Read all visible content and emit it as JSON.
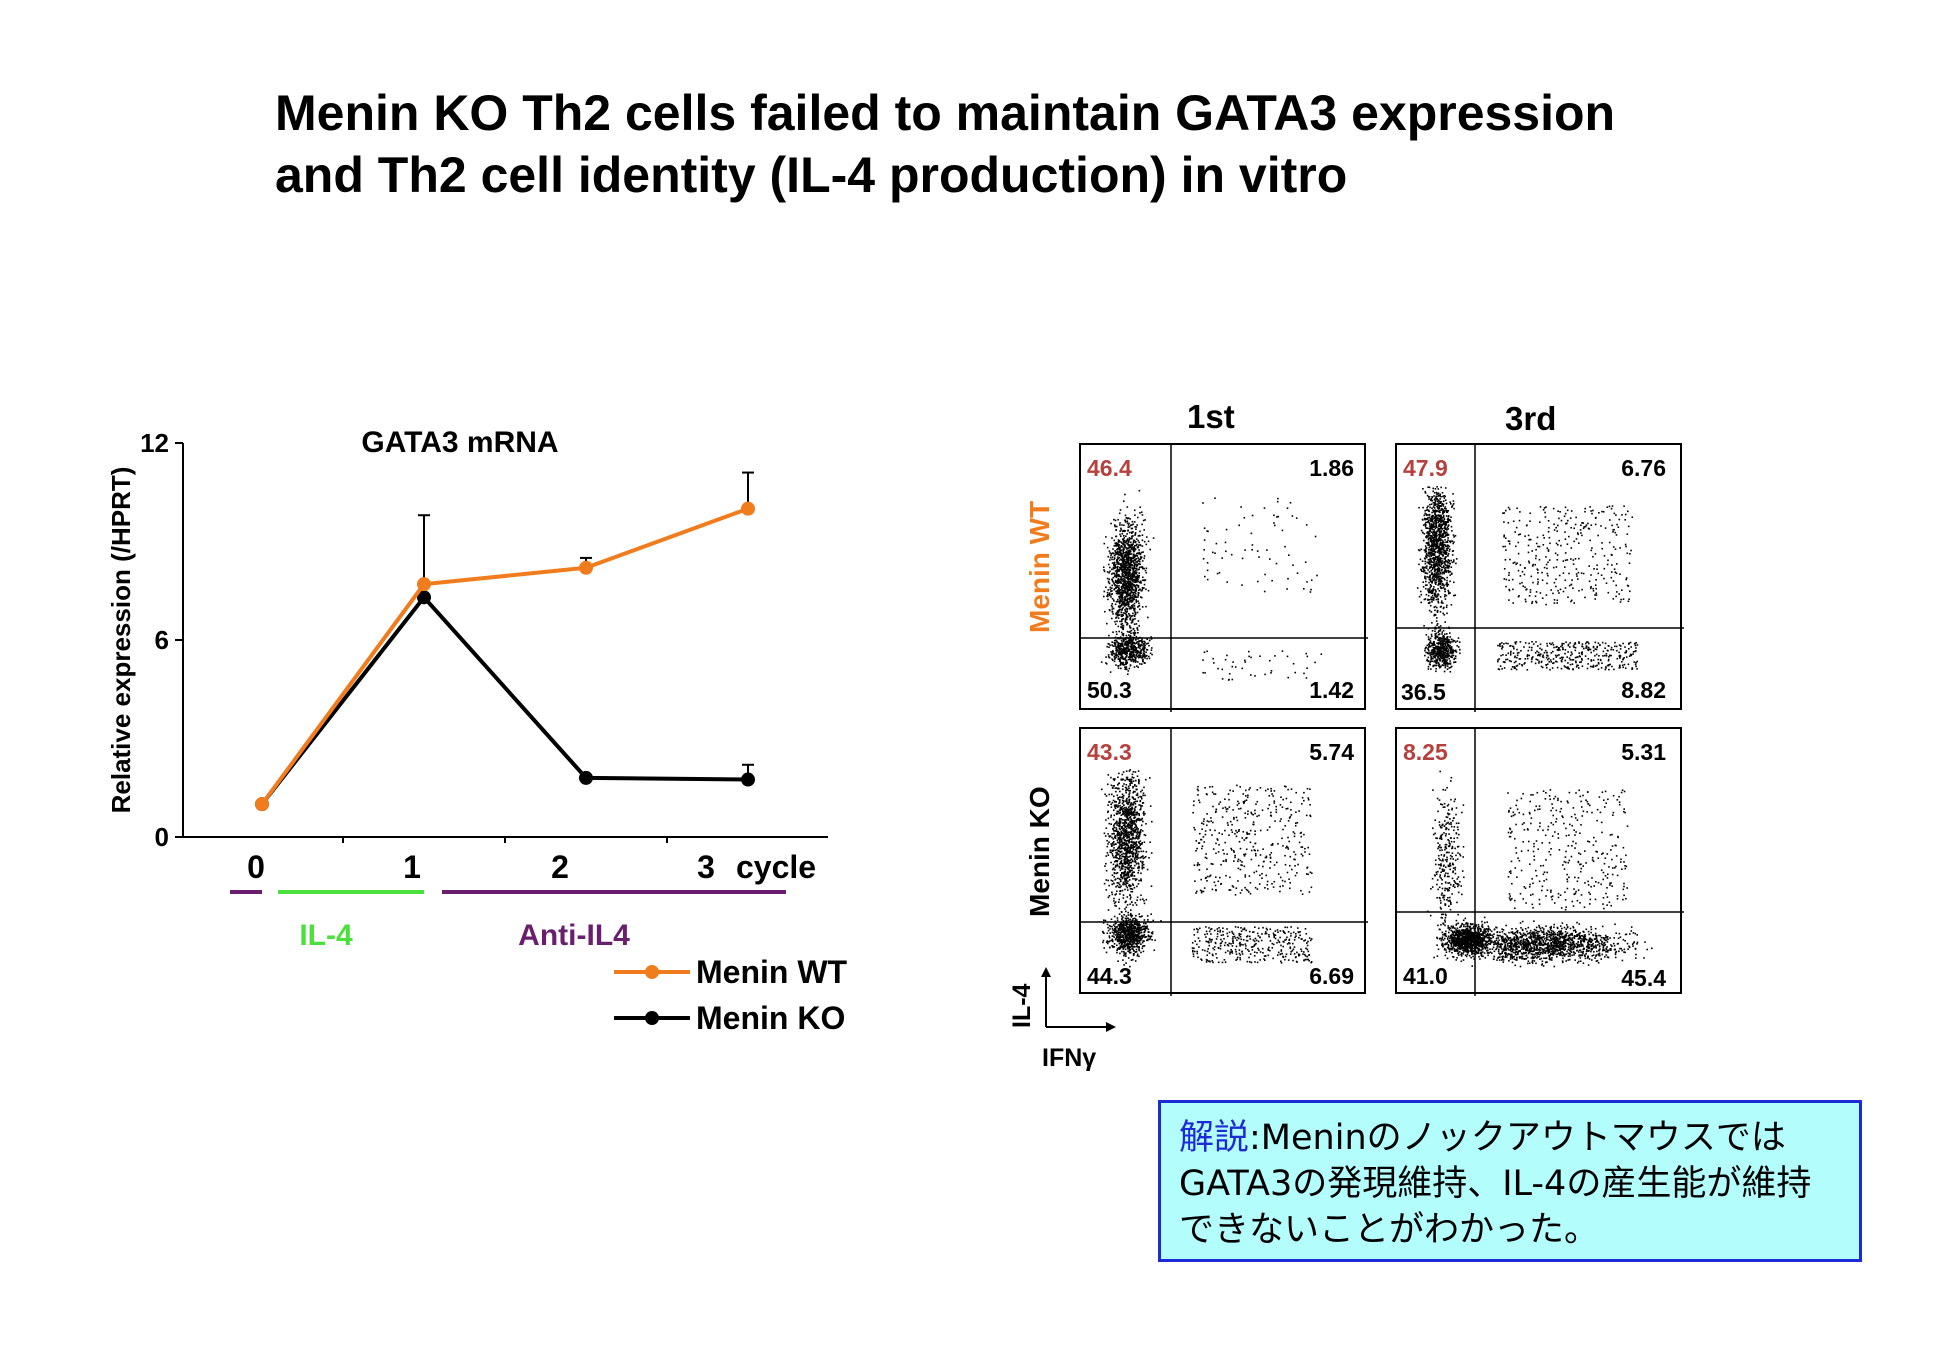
{
  "title_line1": "Menin KO Th2 cells failed to maintain GATA3 expression",
  "title_line2": "and Th2 cell identity (IL-4 production) in vitro",
  "chart_data": [
    {
      "type": "line",
      "title": "GATA3 mRNA",
      "ylabel": "Relative expression (/HPRT)",
      "xlabel": "cycle",
      "ylim": [
        0,
        12
      ],
      "yticks": [
        "0",
        "6",
        "12"
      ],
      "x": [
        "0",
        "1",
        "2",
        "3"
      ],
      "series": [
        {
          "name": "Menin WT",
          "color": "#f07c1e",
          "values": [
            1.0,
            7.7,
            8.2,
            10.0
          ],
          "errors": [
            0,
            0,
            0.3,
            1.1
          ]
        },
        {
          "name": "Menin KO",
          "color": "#000000",
          "values": [
            1.0,
            7.3,
            1.8,
            1.75
          ],
          "errors": [
            0,
            2.5,
            0,
            0.45
          ]
        }
      ],
      "treatments": [
        {
          "label": "IL-4",
          "color": "#4ce03c"
        },
        {
          "label": "Anti-IL4",
          "color": "#6a1e6e"
        }
      ]
    },
    {
      "type": "scatter",
      "subtype": "flow-cytometry-quadrants",
      "xlabel": "IFNγ",
      "ylabel": "IL-4",
      "columns": [
        "1st",
        "3rd"
      ],
      "rows": [
        "Menin WT",
        "Menin KO"
      ],
      "row_colors": [
        "#f07c1e",
        "#000000"
      ],
      "highlight_color": "#b5413e",
      "panels": [
        {
          "row": "Menin WT",
          "column": "1st",
          "ul": "46.4",
          "ur": "1.86",
          "ll": "50.3",
          "lr": "1.42"
        },
        {
          "row": "Menin WT",
          "column": "3rd",
          "ul": "47.9",
          "ur": "6.76",
          "ll": "36.5",
          "lr": "8.82"
        },
        {
          "row": "Menin KO",
          "column": "1st",
          "ul": "43.3",
          "ur": "5.74",
          "ll": "44.3",
          "lr": "6.69"
        },
        {
          "row": "Menin KO",
          "column": "3rd",
          "ul": "8.25",
          "ur": "5.31",
          "ll": "41.0",
          "lr": "45.4"
        }
      ]
    }
  ],
  "note": {
    "heading": "解説",
    "body": ":Meninのノックアウトマウスでは GATA3の発現維持、IL-4の産生能が維持できないことがわかった。"
  }
}
